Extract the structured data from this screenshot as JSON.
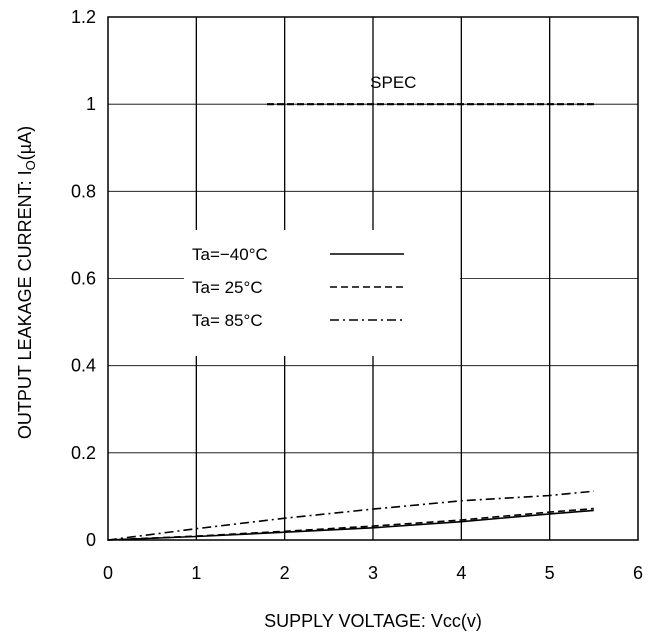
{
  "chart_data": {
    "type": "line",
    "xlabel": "SUPPLY VOLTAGE: Vcc(v)",
    "ylabel_main": "OUTPUT LEAKAGE CURRENT: I",
    "ylabel_sub": "O",
    "ylabel_unit": "(µA)",
    "xlim": [
      0,
      6
    ],
    "ylim": [
      0,
      1.2
    ],
    "xticks": [
      0,
      1,
      2,
      3,
      4,
      5,
      6
    ],
    "yticks": [
      0,
      0.2,
      0.4,
      0.6,
      0.8,
      1,
      1.2
    ],
    "xtick_labels": [
      "0",
      "1",
      "2",
      "3",
      "4",
      "5",
      "6"
    ],
    "ytick_labels": [
      "0",
      "0.2",
      "0.4",
      "0.6",
      "0.8",
      "1",
      "1.2"
    ],
    "grid": true,
    "legend_position": "center-left",
    "series": [
      {
        "name": "Ta=−40°C",
        "style": "solid",
        "x": [
          0,
          1,
          2,
          3,
          4,
          5,
          5.5
        ],
        "y": [
          0.0,
          0.008,
          0.018,
          0.028,
          0.042,
          0.06,
          0.068
        ]
      },
      {
        "name": "Ta= 25°C",
        "style": "dashed",
        "x": [
          0,
          1,
          2,
          3,
          4,
          5,
          5.5
        ],
        "y": [
          0.0,
          0.009,
          0.02,
          0.032,
          0.046,
          0.064,
          0.072
        ]
      },
      {
        "name": "Ta= 85°C",
        "style": "dashdot",
        "x": [
          0,
          1,
          2,
          3,
          4,
          5,
          5.5
        ],
        "y": [
          0.0,
          0.026,
          0.05,
          0.071,
          0.09,
          0.102,
          0.112
        ]
      }
    ],
    "annotations": [
      {
        "text": "SPEC",
        "style": "dashed",
        "x": [
          1.8,
          5.5
        ],
        "y": 1.0
      }
    ]
  }
}
